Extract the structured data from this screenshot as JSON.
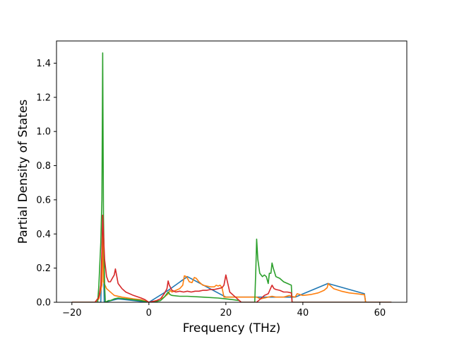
{
  "chart_data": {
    "type": "line",
    "title": "",
    "xlabel": "Frequency (THz)",
    "ylabel": "Partial Density of States",
    "xlim": [
      -24,
      67
    ],
    "ylim": [
      0,
      1.53
    ],
    "xticks": [
      -20,
      0,
      20,
      40,
      60
    ],
    "yticks": [
      0.0,
      0.2,
      0.4,
      0.6,
      0.8,
      1.0,
      1.2,
      1.4
    ],
    "xtick_labels": [
      "−20",
      "0",
      "20",
      "40",
      "60"
    ],
    "ytick_labels": [
      "0.0",
      "0.2",
      "0.4",
      "0.6",
      "0.8",
      "1.0",
      "1.2",
      "1.4"
    ],
    "grid": false,
    "legend": "none",
    "series": [
      {
        "color": "#1f77b4",
        "points": [
          [
            -20,
            0
          ],
          [
            -12.5,
            0
          ],
          [
            -12,
            0.45
          ],
          [
            -11.6,
            0
          ],
          [
            -8,
            0.02
          ],
          [
            0,
            0
          ],
          [
            5,
            0.07
          ],
          [
            10,
            0.15
          ],
          [
            20,
            0.03
          ],
          [
            28,
            0.03
          ],
          [
            38,
            0.03
          ],
          [
            46.5,
            0.11
          ],
          [
            56,
            0.05
          ],
          [
            56.3,
            0
          ],
          [
            63,
            0
          ]
        ]
      },
      {
        "color": "#ff7f0e",
        "points": [
          [
            -20,
            0
          ],
          [
            -14,
            0
          ],
          [
            -13,
            0.02
          ],
          [
            -12.2,
            0.1
          ],
          [
            -12,
            0.5
          ],
          [
            -11.8,
            0.12
          ],
          [
            -11,
            0.08
          ],
          [
            -9,
            0.04
          ],
          [
            -7,
            0.03
          ],
          [
            -4,
            0.02
          ],
          [
            -2,
            0.015
          ],
          [
            0,
            0
          ],
          [
            2,
            0.01
          ],
          [
            3,
            0.02
          ],
          [
            4,
            0.03
          ],
          [
            5,
            0.05
          ],
          [
            5.5,
            0.07
          ],
          [
            6,
            0.06
          ],
          [
            7,
            0.07
          ],
          [
            8,
            0.08
          ],
          [
            8.8,
            0.1
          ],
          [
            9.2,
            0.155
          ],
          [
            9.8,
            0.15
          ],
          [
            10.5,
            0.12
          ],
          [
            11.2,
            0.115
          ],
          [
            11.8,
            0.145
          ],
          [
            12.3,
            0.14
          ],
          [
            13,
            0.12
          ],
          [
            14,
            0.1
          ],
          [
            15,
            0.095
          ],
          [
            16,
            0.09
          ],
          [
            17,
            0.09
          ],
          [
            17.5,
            0.1
          ],
          [
            18,
            0.095
          ],
          [
            18.5,
            0.1
          ],
          [
            19,
            0.085
          ],
          [
            19.5,
            0.03
          ],
          [
            20,
            0.03
          ],
          [
            24,
            0.03
          ],
          [
            27,
            0.03
          ],
          [
            28,
            0.03
          ],
          [
            29,
            0.02
          ],
          [
            30,
            0.025
          ],
          [
            31,
            0.03
          ],
          [
            32,
            0.035
          ],
          [
            33,
            0.03
          ],
          [
            35,
            0.03
          ],
          [
            36.5,
            0.04
          ],
          [
            37,
            0.035
          ],
          [
            38,
            0.03
          ],
          [
            38.5,
            0.05
          ],
          [
            40,
            0.04
          ],
          [
            42,
            0.045
          ],
          [
            44,
            0.055
          ],
          [
            45.5,
            0.07
          ],
          [
            46.3,
            0.085
          ],
          [
            46.6,
            0.11
          ],
          [
            47,
            0.1
          ],
          [
            48,
            0.08
          ],
          [
            50,
            0.065
          ],
          [
            52,
            0.055
          ],
          [
            54,
            0.05
          ],
          [
            55.5,
            0.045
          ],
          [
            56,
            0.045
          ],
          [
            56.3,
            0
          ],
          [
            63,
            0
          ]
        ]
      },
      {
        "color": "#2ca02c",
        "points": [
          [
            -20,
            0
          ],
          [
            -13.3,
            0
          ],
          [
            -13,
            0.1
          ],
          [
            -12.5,
            0.35
          ],
          [
            -12.2,
            0.6
          ],
          [
            -12,
            1.46
          ],
          [
            -11.8,
            0.5
          ],
          [
            -11.5,
            0.1
          ],
          [
            -11.3,
            0
          ],
          [
            -10.5,
            0.01
          ],
          [
            -10,
            0.01
          ],
          [
            -9,
            0.02
          ],
          [
            -8,
            0.025
          ],
          [
            -6,
            0.02
          ],
          [
            -4,
            0.015
          ],
          [
            -2,
            0.01
          ],
          [
            0,
            0
          ],
          [
            2,
            0.005
          ],
          [
            3,
            0.01
          ],
          [
            4,
            0.03
          ],
          [
            5,
            0.06
          ],
          [
            5.5,
            0.045
          ],
          [
            6,
            0.04
          ],
          [
            8,
            0.035
          ],
          [
            10,
            0.035
          ],
          [
            14,
            0.03
          ],
          [
            18,
            0.025
          ],
          [
            20,
            0.02
          ],
          [
            22,
            0.015
          ],
          [
            23.5,
            0.01
          ],
          [
            24,
            0
          ],
          [
            27.5,
            0
          ],
          [
            27.8,
            0.2
          ],
          [
            28,
            0.37
          ],
          [
            28.3,
            0.25
          ],
          [
            28.8,
            0.17
          ],
          [
            29.5,
            0.15
          ],
          [
            30,
            0.16
          ],
          [
            30.5,
            0.15
          ],
          [
            31,
            0.11
          ],
          [
            31.3,
            0.17
          ],
          [
            31.7,
            0.17
          ],
          [
            32,
            0.23
          ],
          [
            32.3,
            0.2
          ],
          [
            33,
            0.15
          ],
          [
            34,
            0.14
          ],
          [
            34.5,
            0.13
          ],
          [
            35,
            0.12
          ],
          [
            36,
            0.11
          ],
          [
            37,
            0.1
          ],
          [
            37.2,
            0
          ],
          [
            63,
            0
          ]
        ]
      },
      {
        "color": "#d62728",
        "points": [
          [
            -20,
            0
          ],
          [
            -14,
            0
          ],
          [
            -13,
            0.03
          ],
          [
            -12.5,
            0.1
          ],
          [
            -12.2,
            0.3
          ],
          [
            -12,
            0.51
          ],
          [
            -11.8,
            0.4
          ],
          [
            -11.5,
            0.25
          ],
          [
            -11,
            0.15
          ],
          [
            -10.5,
            0.12
          ],
          [
            -10,
            0.12
          ],
          [
            -9.5,
            0.14
          ],
          [
            -9,
            0.16
          ],
          [
            -8.7,
            0.195
          ],
          [
            -8.4,
            0.16
          ],
          [
            -8,
            0.11
          ],
          [
            -7,
            0.08
          ],
          [
            -6,
            0.06
          ],
          [
            -4,
            0.04
          ],
          [
            -2,
            0.025
          ],
          [
            -1,
            0.015
          ],
          [
            0,
            0
          ],
          [
            2,
            0.01
          ],
          [
            3,
            0.02
          ],
          [
            4,
            0.05
          ],
          [
            4.7,
            0.08
          ],
          [
            5,
            0.125
          ],
          [
            5.3,
            0.1
          ],
          [
            6,
            0.07
          ],
          [
            7,
            0.06
          ],
          [
            8,
            0.065
          ],
          [
            9,
            0.06
          ],
          [
            10,
            0.065
          ],
          [
            11,
            0.06
          ],
          [
            12,
            0.065
          ],
          [
            13,
            0.065
          ],
          [
            14,
            0.07
          ],
          [
            15,
            0.07
          ],
          [
            16,
            0.075
          ],
          [
            17,
            0.075
          ],
          [
            18,
            0.08
          ],
          [
            19,
            0.085
          ],
          [
            19.5,
            0.1
          ],
          [
            20,
            0.16
          ],
          [
            20.4,
            0.12
          ],
          [
            21,
            0.06
          ],
          [
            22,
            0.04
          ],
          [
            23,
            0.02
          ],
          [
            24,
            0
          ],
          [
            28,
            0
          ],
          [
            29,
            0.02
          ],
          [
            30,
            0.04
          ],
          [
            31,
            0.05
          ],
          [
            31.8,
            0.09
          ],
          [
            32,
            0.1
          ],
          [
            32.5,
            0.08
          ],
          [
            33,
            0.075
          ],
          [
            34,
            0.07
          ],
          [
            35,
            0.06
          ],
          [
            36,
            0.06
          ],
          [
            37,
            0.055
          ],
          [
            37.2,
            0
          ],
          [
            63,
            0
          ]
        ]
      }
    ]
  }
}
